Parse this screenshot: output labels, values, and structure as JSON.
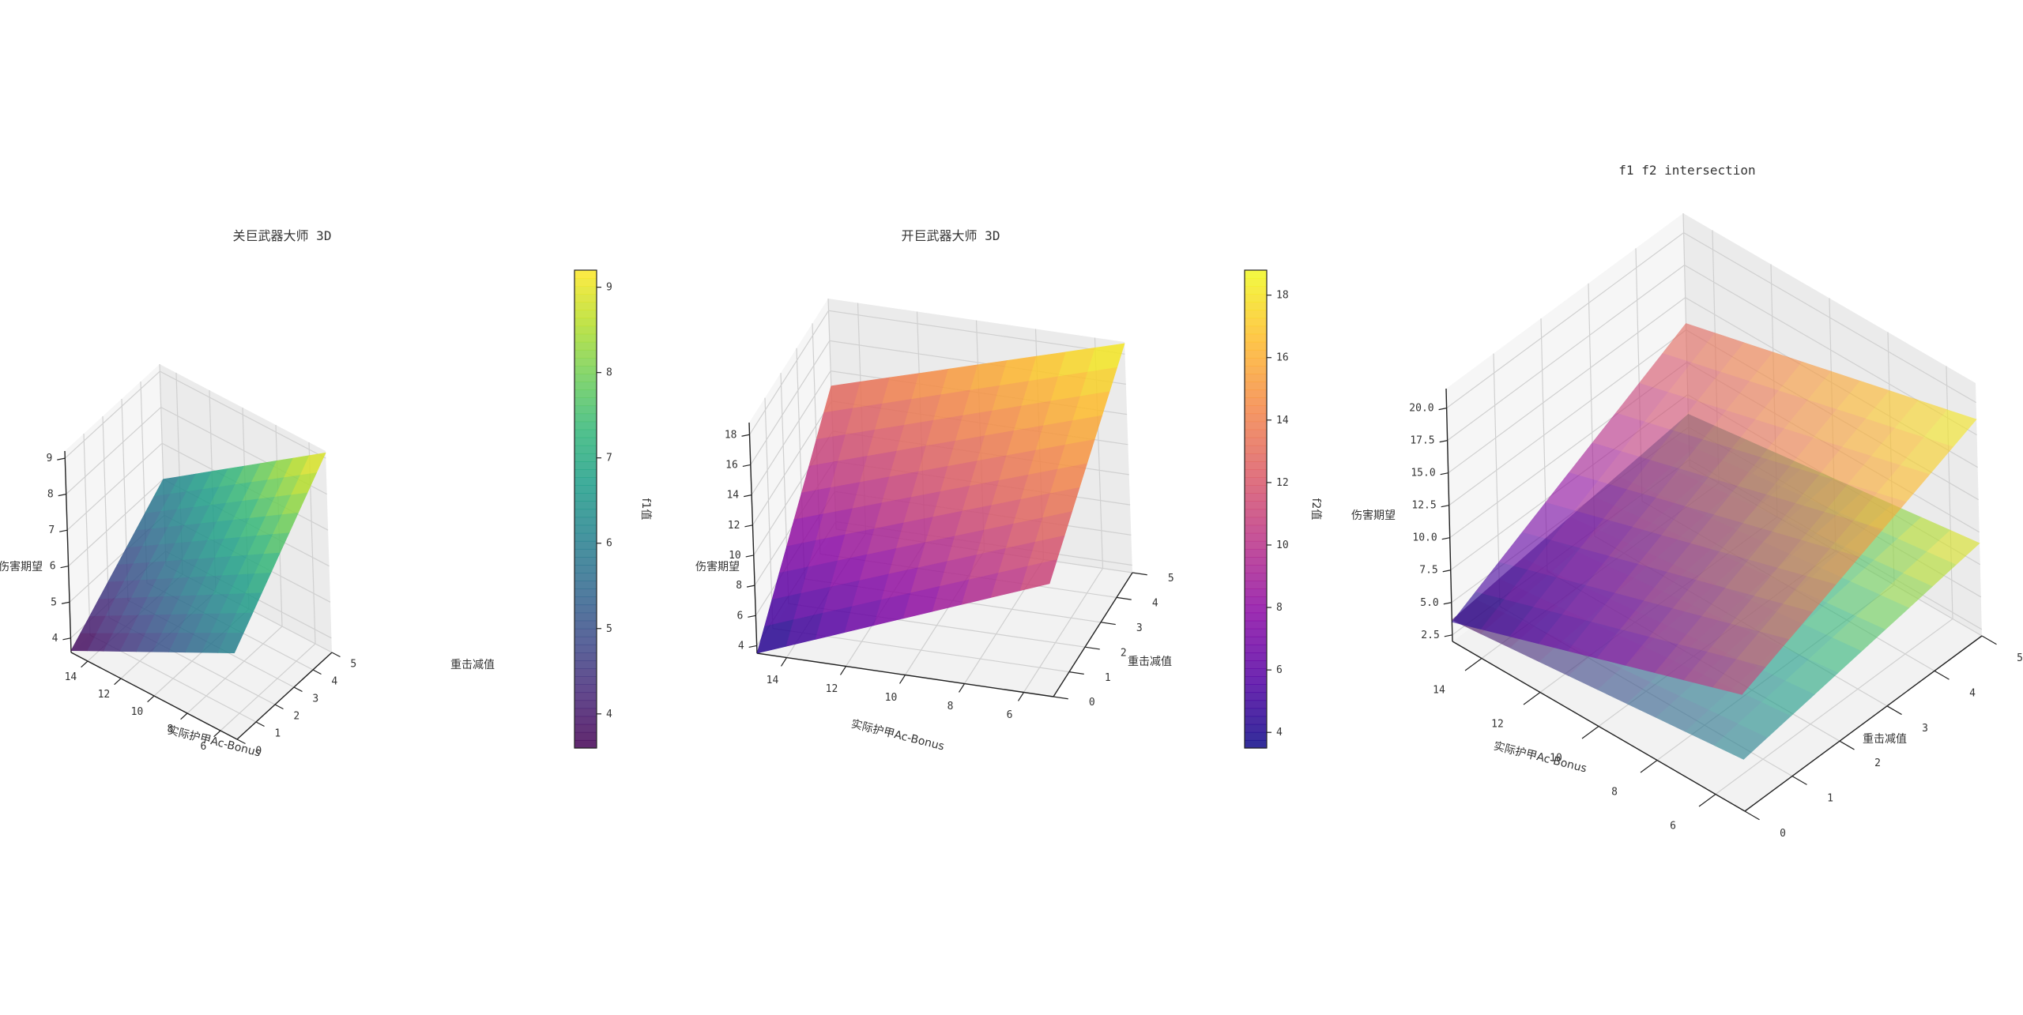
{
  "chart_data": [
    {
      "type": "surface3d",
      "title": "关巨武器大师 3D",
      "xlabel": "实际护甲Ac-Bonus",
      "ylabel": "重击减值",
      "zlabel": "伤害期望",
      "x_range": [
        5,
        15
      ],
      "y_range": [
        0,
        5
      ],
      "z_range": [
        3.6,
        9.2
      ],
      "xticks": [
        "14",
        "12",
        "10",
        "8",
        "6"
      ],
      "yticks": [
        "0",
        "1",
        "2",
        "3",
        "4",
        "5"
      ],
      "zticks": [
        "4",
        "5",
        "6",
        "7",
        "8",
        "9"
      ],
      "surface_corners": {
        "x15_y0": 3.65,
        "x5_y0": 6.0,
        "x15_y5": 6.0,
        "x5_y5": 9.15
      },
      "colormap": "viridis",
      "colorbar": {
        "label": "f1值",
        "min": 3.6,
        "max": 9.2,
        "ticks": [
          "4",
          "5",
          "6",
          "7",
          "8",
          "9"
        ]
      }
    },
    {
      "type": "surface3d",
      "title": "开巨武器大师 3D",
      "xlabel": "实际护甲Ac-Bonus",
      "ylabel": "重击减值",
      "zlabel": "伤害期望",
      "x_range": [
        5,
        15
      ],
      "y_range": [
        0,
        5
      ],
      "z_range": [
        3.5,
        18.8
      ],
      "xticks": [
        "14",
        "12",
        "10",
        "8",
        "6"
      ],
      "yticks": [
        "0",
        "1",
        "2",
        "3",
        "4",
        "5"
      ],
      "zticks": [
        "4",
        "6",
        "8",
        "10",
        "12",
        "14",
        "16",
        "18"
      ],
      "surface_corners": {
        "x15_y0": 3.5,
        "x5_y0": 11.0,
        "x15_y5": 13.0,
        "x5_y5": 18.7
      },
      "colormap": "plasma",
      "colorbar": {
        "label": "f2值",
        "min": 3.5,
        "max": 18.8,
        "ticks": [
          "4",
          "6",
          "8",
          "10",
          "12",
          "14",
          "16",
          "18"
        ]
      }
    },
    {
      "type": "surface3d",
      "title": "f1 f2 intersection",
      "xlabel": "实际护甲Ac-Bonus",
      "ylabel": "重击减值",
      "zlabel": "伤害期望",
      "x_range": [
        5,
        15
      ],
      "y_range": [
        0,
        5
      ],
      "z_range": [
        2.0,
        21.5
      ],
      "xticks": [
        "14",
        "12",
        "10",
        "8",
        "6"
      ],
      "yticks": [
        "0",
        "1",
        "2",
        "3",
        "4",
        "5"
      ],
      "zticks": [
        "2.5",
        "5.0",
        "7.5",
        "10.0",
        "12.5",
        "15.0",
        "17.5",
        "20.0"
      ],
      "series": [
        {
          "colormap": "viridis",
          "surface_corners": {
            "x15_y0": 3.65,
            "x5_y0": 6.0,
            "x15_y5": 6.0,
            "x5_y5": 9.15
          }
        },
        {
          "colormap": "plasma",
          "surface_corners": {
            "x15_y0": 3.5,
            "x5_y0": 11.0,
            "x15_y5": 13.0,
            "x5_y5": 18.7
          }
        }
      ]
    }
  ]
}
